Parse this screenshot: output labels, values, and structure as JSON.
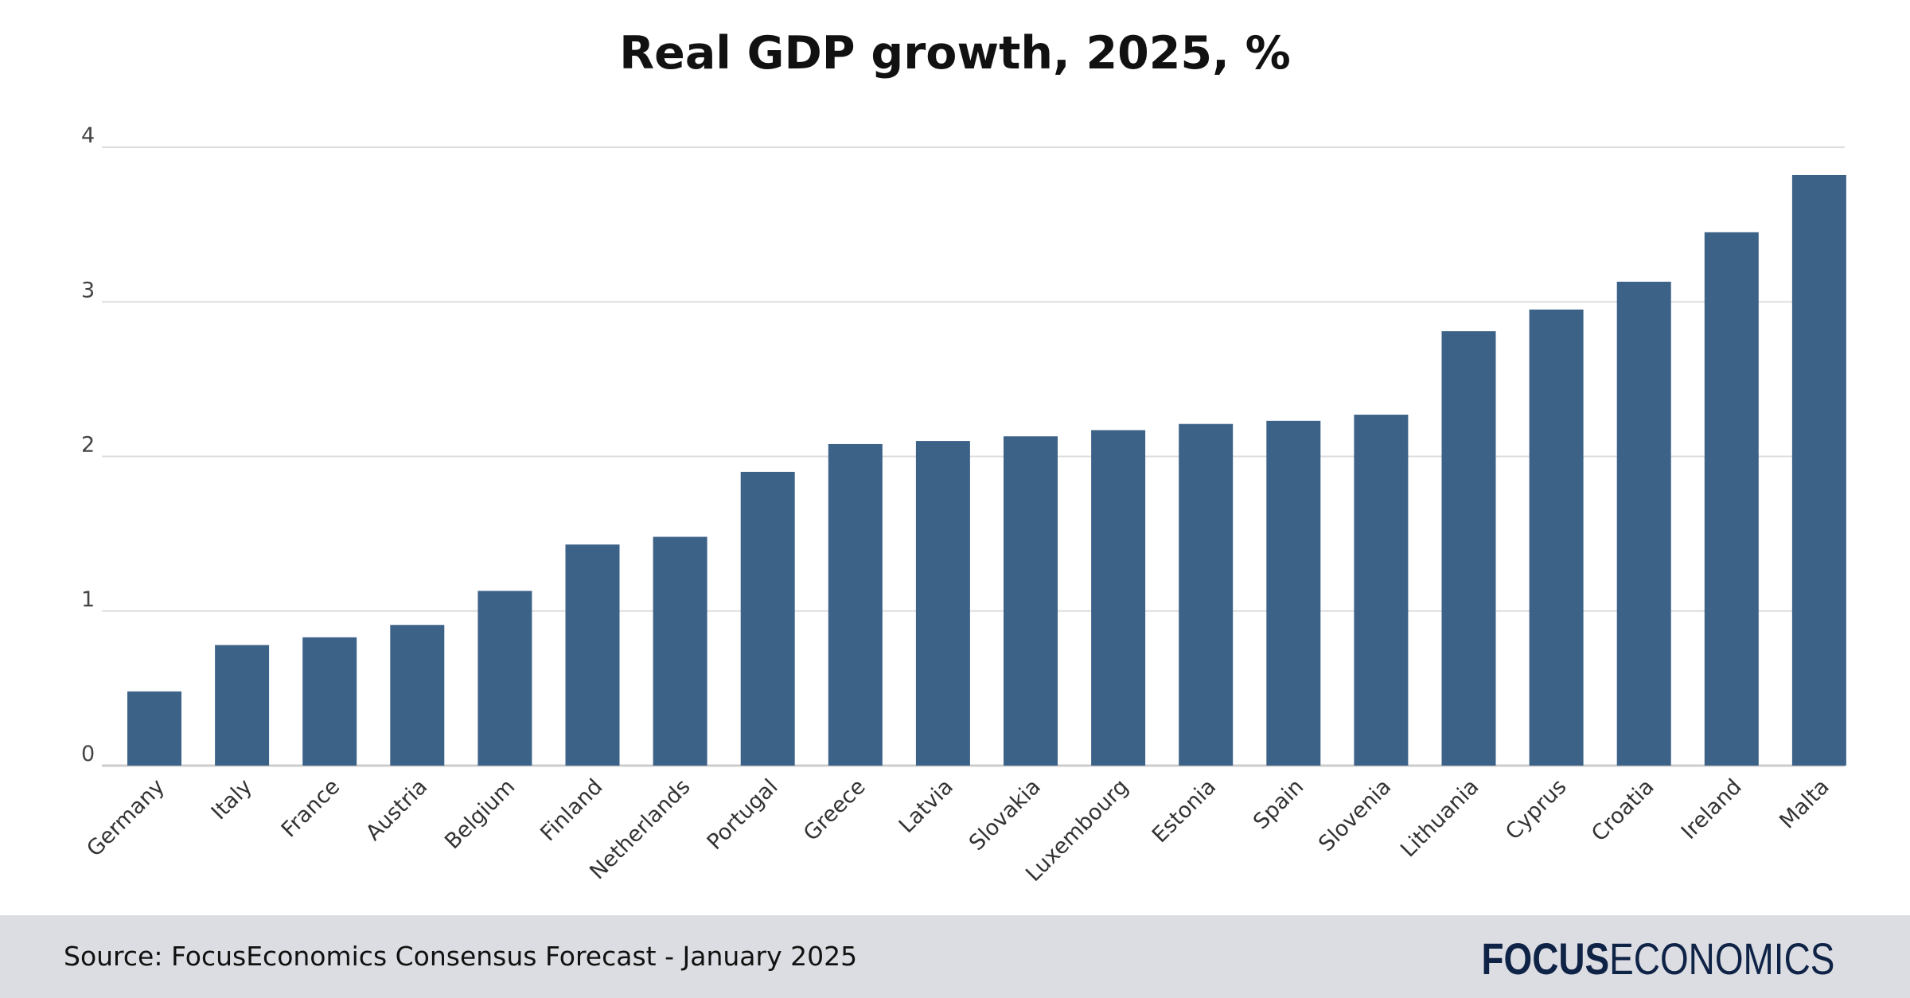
{
  "chart_data": {
    "type": "bar",
    "title": "Real GDP growth, 2025, %",
    "categories": [
      "Germany",
      "Italy",
      "France",
      "Austria",
      "Belgium",
      "Finland",
      "Netherlands",
      "Portugal",
      "Greece",
      "Latvia",
      "Slovakia",
      "Luxembourg",
      "Estonia",
      "Spain",
      "Slovenia",
      "Lithuania",
      "Cyprus",
      "Croatia",
      "Ireland",
      "Malta"
    ],
    "values": [
      0.48,
      0.78,
      0.83,
      0.91,
      1.13,
      1.43,
      1.48,
      1.9,
      2.08,
      2.1,
      2.13,
      2.17,
      2.21,
      2.23,
      2.27,
      2.81,
      2.95,
      3.13,
      3.45,
      3.82
    ],
    "ylim": [
      0,
      4
    ],
    "yticks": [
      0,
      1,
      2,
      3,
      4
    ],
    "grid": true,
    "bar_color": "#3d6288",
    "grid_color": "#dddddd"
  },
  "footer": {
    "source": "Source: FocusEconomics Consensus Forecast - January 2025",
    "brand_bold": "FOCUS",
    "brand_light": "ECONOMICS"
  }
}
